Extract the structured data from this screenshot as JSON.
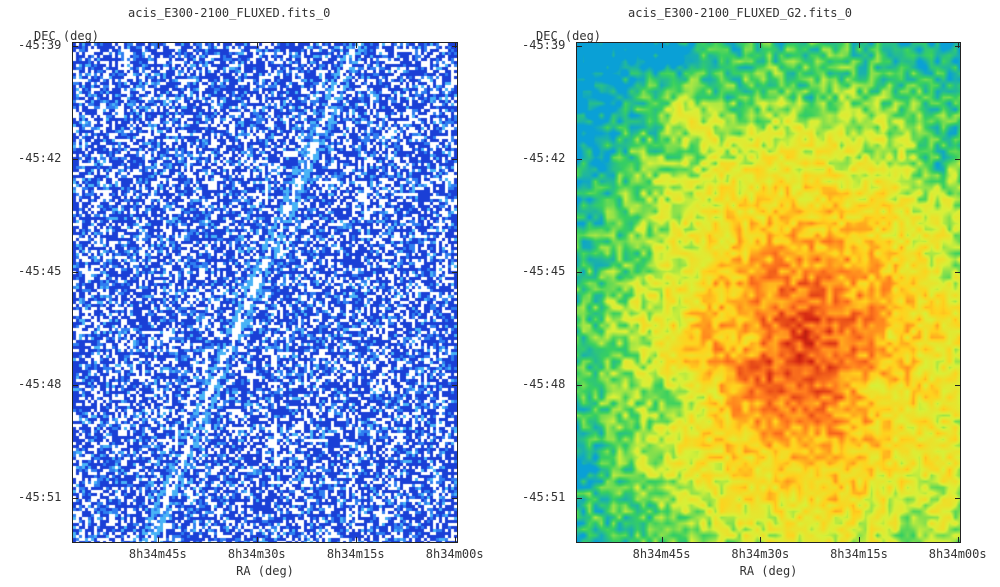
{
  "panels": [
    {
      "title": "acis_E300-2100_FLUXED.fits_0",
      "ylabel": "DEC (deg)",
      "xlabel": "RA (deg)",
      "colormap": [
        "#ffffff",
        "#1a3fd6",
        "#2f7ef0",
        "#48b3f6"
      ]
    },
    {
      "title": "acis_E300-2100_FLUXED_G2.fits_0",
      "ylabel": "DEC (deg)",
      "xlabel": "RA (deg)",
      "colormap": [
        "#0aa0d6",
        "#38d060",
        "#d8f038",
        "#ffd21e",
        "#ff7a1e",
        "#d62a14",
        "#8a0a0a"
      ]
    }
  ],
  "chart_data": [
    {
      "type": "heatmap",
      "title": "acis_E300-2100_FLUXED.fits_0",
      "xlabel": "RA (deg)",
      "ylabel": "DEC (deg)",
      "x_ticks": [
        "8h34m45s",
        "8h34m30s",
        "8h34m15s",
        "8h34m00s"
      ],
      "y_ticks": [
        "-45:39",
        "-45:42",
        "-45:45",
        "-45:48",
        "-45:51"
      ],
      "x_tick_values_sec": [
        525,
        510,
        495,
        480
      ],
      "y_tick_values_arcmin": [
        -39,
        -42,
        -45,
        -48,
        -51
      ],
      "xlim_sec": [
        538,
        479.5
      ],
      "ylim_arcmin": [
        -52.2,
        -38.9
      ],
      "grid": false
    },
    {
      "type": "heatmap",
      "title": "acis_E300-2100_FLUXED_G2.fits_0",
      "xlabel": "RA (deg)",
      "ylabel": "DEC (deg)",
      "x_ticks": [
        "8h34m45s",
        "8h34m30s",
        "8h34m15s",
        "8h34m00s"
      ],
      "y_ticks": [
        "-45:39",
        "-45:42",
        "-45:45",
        "-45:48",
        "-45:51"
      ],
      "x_tick_values_sec": [
        525,
        510,
        495,
        480
      ],
      "y_tick_values_arcmin": [
        -39,
        -42,
        -45,
        -48,
        -51
      ],
      "xlim_sec": [
        538,
        479.5
      ],
      "ylim_arcmin": [
        -52.2,
        -38.9
      ],
      "grid": false
    }
  ]
}
